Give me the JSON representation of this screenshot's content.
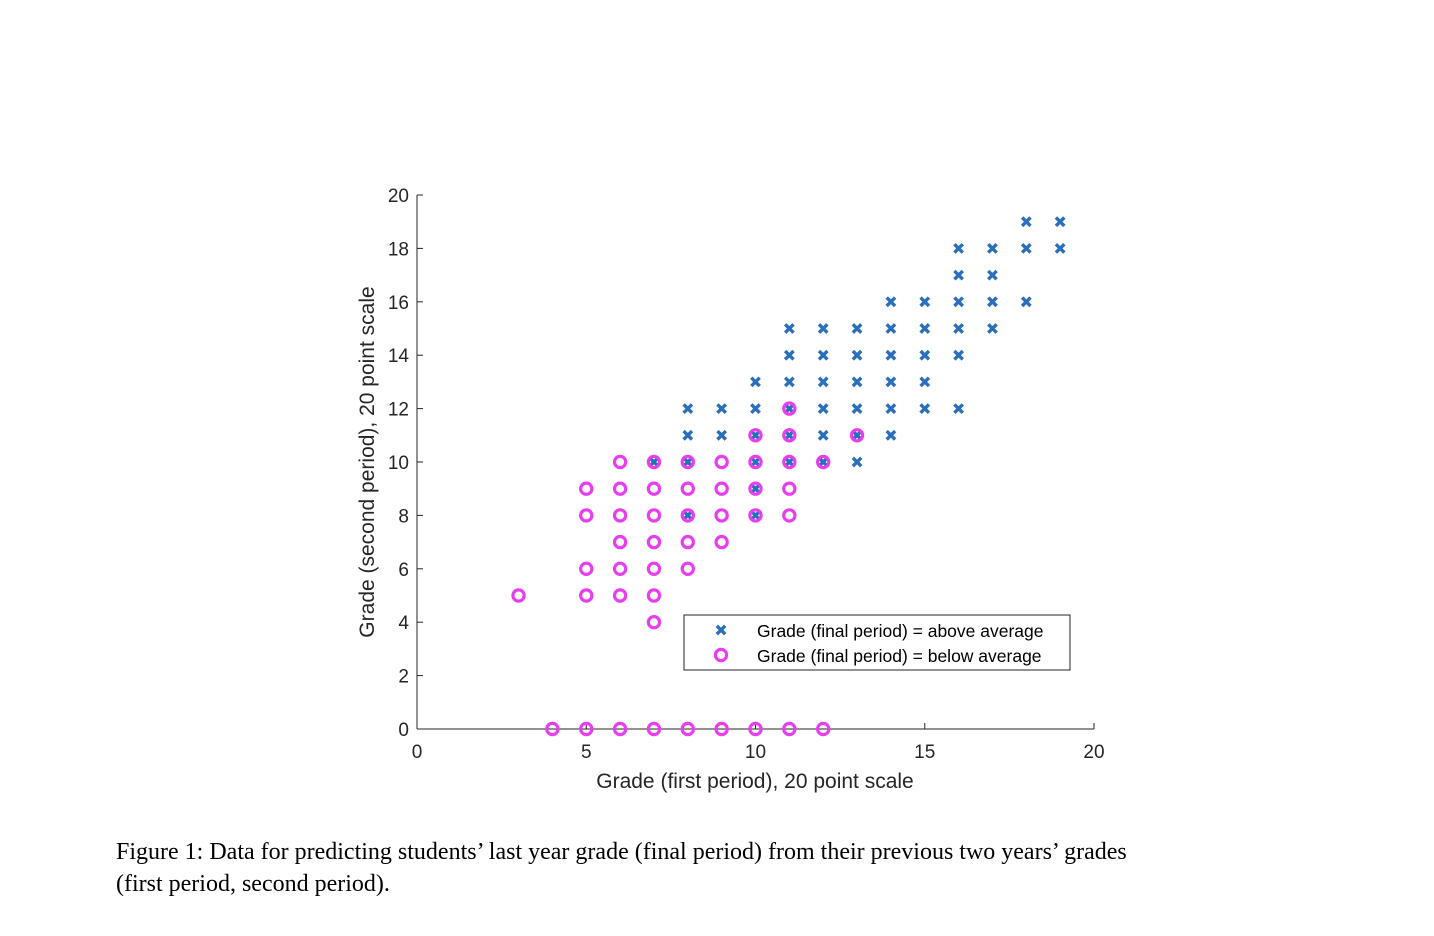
{
  "chart_data": {
    "type": "scatter",
    "title": "",
    "xlabel": "Grade (first period), 20 point scale",
    "ylabel": "Grade (second period), 20 point scale",
    "xlim": [
      0,
      20
    ],
    "ylim": [
      0,
      20
    ],
    "xticks": [
      0,
      5,
      10,
      15,
      20
    ],
    "yticks": [
      0,
      2,
      4,
      6,
      8,
      10,
      12,
      14,
      16,
      18,
      20
    ],
    "grid": false,
    "legend_position": "bottom-right",
    "series": [
      {
        "name": "Grade (final period) = above average",
        "marker": "x",
        "color": "#2b6fbb",
        "points": [
          [
            18,
            19
          ],
          [
            19,
            19
          ],
          [
            16,
            18
          ],
          [
            17,
            18
          ],
          [
            18,
            18
          ],
          [
            19,
            18
          ],
          [
            16,
            17
          ],
          [
            17,
            17
          ],
          [
            14,
            16
          ],
          [
            15,
            16
          ],
          [
            16,
            16
          ],
          [
            17,
            16
          ],
          [
            18,
            16
          ],
          [
            11,
            15
          ],
          [
            12,
            15
          ],
          [
            13,
            15
          ],
          [
            14,
            15
          ],
          [
            15,
            15
          ],
          [
            16,
            15
          ],
          [
            17,
            15
          ],
          [
            11,
            14
          ],
          [
            12,
            14
          ],
          [
            13,
            14
          ],
          [
            14,
            14
          ],
          [
            15,
            14
          ],
          [
            16,
            14
          ],
          [
            10,
            13
          ],
          [
            11,
            13
          ],
          [
            12,
            13
          ],
          [
            13,
            13
          ],
          [
            14,
            13
          ],
          [
            15,
            13
          ],
          [
            8,
            12
          ],
          [
            9,
            12
          ],
          [
            10,
            12
          ],
          [
            11,
            12
          ],
          [
            12,
            12
          ],
          [
            13,
            12
          ],
          [
            14,
            12
          ],
          [
            15,
            12
          ],
          [
            16,
            12
          ],
          [
            8,
            11
          ],
          [
            9,
            11
          ],
          [
            10,
            11
          ],
          [
            11,
            11
          ],
          [
            12,
            11
          ],
          [
            13,
            11
          ],
          [
            14,
            11
          ],
          [
            7,
            10
          ],
          [
            8,
            10
          ],
          [
            10,
            10
          ],
          [
            11,
            10
          ],
          [
            12,
            10
          ],
          [
            13,
            10
          ],
          [
            10,
            9
          ],
          [
            8,
            8
          ],
          [
            10,
            8
          ]
        ]
      },
      {
        "name": "Grade (final period) = below average",
        "marker": "o",
        "color": "#e83ef0",
        "points": [
          [
            11,
            12
          ],
          [
            10,
            11
          ],
          [
            11,
            11
          ],
          [
            13,
            11
          ],
          [
            6,
            10
          ],
          [
            7,
            10
          ],
          [
            8,
            10
          ],
          [
            9,
            10
          ],
          [
            10,
            10
          ],
          [
            11,
            10
          ],
          [
            12,
            10
          ],
          [
            5,
            9
          ],
          [
            6,
            9
          ],
          [
            7,
            9
          ],
          [
            8,
            9
          ],
          [
            9,
            9
          ],
          [
            10,
            9
          ],
          [
            11,
            9
          ],
          [
            5,
            8
          ],
          [
            6,
            8
          ],
          [
            7,
            8
          ],
          [
            8,
            8
          ],
          [
            9,
            8
          ],
          [
            10,
            8
          ],
          [
            11,
            8
          ],
          [
            6,
            7
          ],
          [
            7,
            7
          ],
          [
            8,
            7
          ],
          [
            9,
            7
          ],
          [
            5,
            6
          ],
          [
            6,
            6
          ],
          [
            7,
            6
          ],
          [
            8,
            6
          ],
          [
            3,
            5
          ],
          [
            5,
            5
          ],
          [
            6,
            5
          ],
          [
            7,
            5
          ],
          [
            7,
            4
          ],
          [
            4,
            0
          ],
          [
            5,
            0
          ],
          [
            6,
            0
          ],
          [
            7,
            0
          ],
          [
            8,
            0
          ],
          [
            9,
            0
          ],
          [
            10,
            0
          ],
          [
            11,
            0
          ],
          [
            12,
            0
          ]
        ]
      }
    ]
  },
  "caption": {
    "line1": "Figure 1: Data for predicting students’ last year grade (final period) from their previous two years’ grades",
    "line2": "(first period, second period)."
  }
}
